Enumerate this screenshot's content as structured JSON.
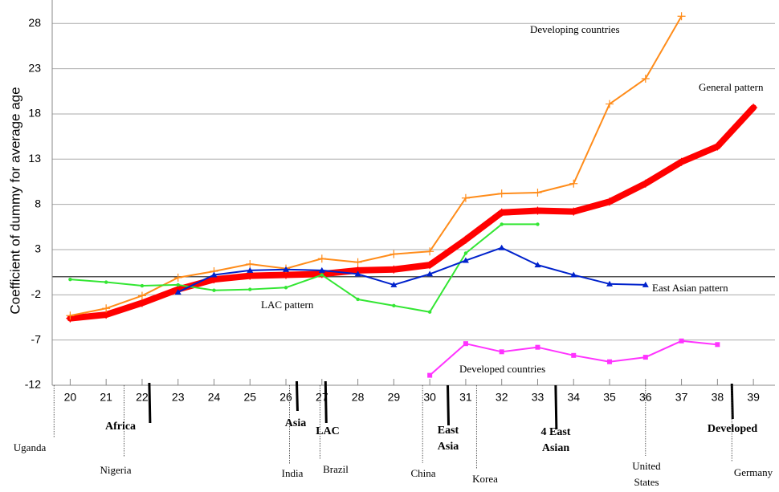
{
  "chart_data": {
    "type": "line",
    "y_label": "Coefficient of dummy for average age",
    "x": [
      20,
      21,
      22,
      23,
      24,
      25,
      26,
      27,
      28,
      29,
      30,
      31,
      32,
      33,
      34,
      35,
      36,
      37,
      38,
      39
    ],
    "xlim": [
      19.5,
      39.6
    ],
    "xticks": [
      20,
      21,
      22,
      23,
      24,
      25,
      26,
      27,
      28,
      29,
      30,
      31,
      32,
      33,
      34,
      35,
      36,
      37,
      38,
      39
    ],
    "ylim": [
      -12,
      30.6
    ],
    "yticks": [
      -12,
      -7,
      -2,
      3,
      8,
      13,
      18,
      23,
      28
    ],
    "grid": true,
    "series": [
      {
        "name": "General pattern",
        "color": "#ff0000",
        "width": 8,
        "marker": "plus",
        "values": [
          -4.6,
          -4.2,
          -2.9,
          -1.4,
          -0.3,
          0.1,
          0.2,
          0.3,
          0.7,
          0.8,
          1.3,
          4.1,
          7.1,
          7.3,
          7.2,
          8.3,
          10.3,
          12.7,
          14.4,
          18.7
        ]
      },
      {
        "name": "Developing countries",
        "color": "#ff8c1a",
        "width": 2,
        "marker": "plus",
        "values": [
          -4.3,
          -3.5,
          -2.1,
          -0.1,
          0.6,
          1.4,
          0.9,
          2.0,
          1.6,
          2.5,
          2.8,
          8.7,
          9.2,
          9.3,
          10.3,
          19.1,
          21.9,
          28.8,
          null,
          null
        ]
      },
      {
        "name": "LAC pattern",
        "color": "#33e633",
        "width": 2,
        "marker": "circle",
        "values": [
          -0.3,
          -0.6,
          -1.0,
          -0.9,
          -1.5,
          -1.4,
          -1.2,
          0.2,
          -2.5,
          -3.2,
          -3.9,
          2.6,
          5.8,
          5.8,
          null,
          null,
          null,
          null,
          null,
          null
        ]
      },
      {
        "name": "East Asian pattern",
        "color": "#0022cc",
        "width": 2,
        "marker": "triangle",
        "values": [
          null,
          null,
          null,
          -1.7,
          0.2,
          0.7,
          0.8,
          0.7,
          0.3,
          -0.9,
          0.3,
          1.8,
          3.2,
          1.3,
          0.2,
          -0.8,
          -0.9,
          null,
          null,
          null
        ]
      },
      {
        "name": "Developed countries",
        "color": "#ff33ff",
        "width": 2,
        "marker": "square",
        "values": [
          null,
          null,
          null,
          null,
          null,
          null,
          null,
          null,
          null,
          null,
          -10.9,
          -7.4,
          -8.3,
          -7.8,
          -8.7,
          -9.4,
          -8.9,
          -7.1,
          -7.5,
          null
        ]
      }
    ],
    "regions": [
      {
        "lines": [
          "Africa"
        ],
        "x": 22.2
      },
      {
        "lines": [
          "Asia"
        ],
        "x": 26.3
      },
      {
        "lines": [
          "LAC"
        ],
        "x": 27.1
      },
      {
        "lines": [
          "East",
          "Asia"
        ],
        "x": 30.5
      },
      {
        "lines": [
          "4 East",
          "Asian"
        ],
        "x": 33.5
      },
      {
        "lines": [
          "Developed"
        ],
        "x": 38.4
      }
    ],
    "countries": [
      {
        "lines": [
          "Uganda"
        ],
        "x": 19.55
      },
      {
        "lines": [
          "Nigeria"
        ],
        "x": 21.5
      },
      {
        "lines": [
          "India"
        ],
        "x": 26.1
      },
      {
        "lines": [
          "Brazil"
        ],
        "x": 26.95
      },
      {
        "lines": [
          "China"
        ],
        "x": 29.8
      },
      {
        "lines": [
          "Korea"
        ],
        "x": 31.3
      },
      {
        "lines": [
          "United",
          "States"
        ],
        "x": 36.0
      },
      {
        "lines": [
          "Germany"
        ],
        "x": 38.4
      }
    ]
  }
}
